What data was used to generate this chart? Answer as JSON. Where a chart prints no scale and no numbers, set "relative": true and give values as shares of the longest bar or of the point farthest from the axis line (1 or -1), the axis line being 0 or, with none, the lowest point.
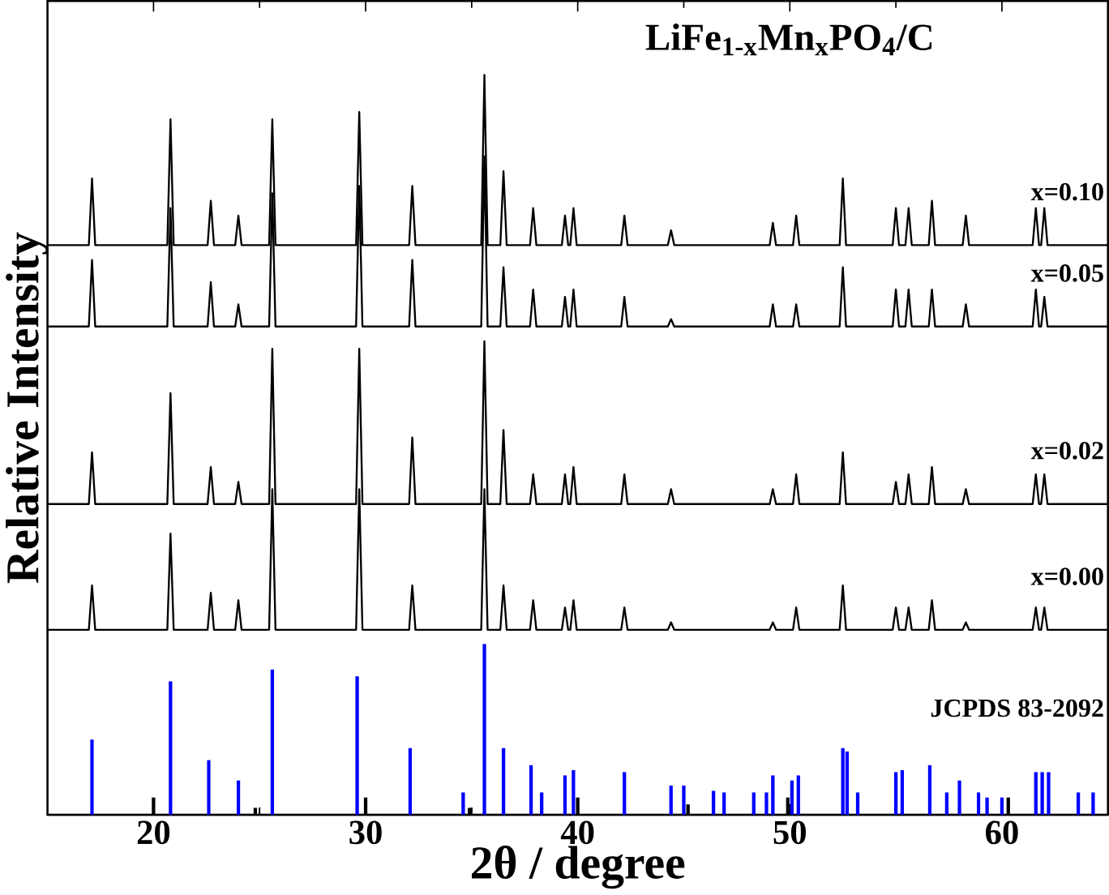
{
  "chart_data": [
    {
      "type": "line",
      "title": "LiFe$_{1-x}$Mn$_{x}$PO$_{4}$/C",
      "xlabel": "2θ / degree",
      "ylabel": "Relative Intensity",
      "relative": true,
      "xlim": [
        15,
        65
      ],
      "xticks": [
        20,
        30,
        40,
        50,
        60
      ],
      "tick_labels": "x",
      "x": [
        15,
        16.95,
        17.1,
        17.25,
        20.65,
        20.8,
        20.95,
        22.55,
        22.7,
        22.85,
        23.85,
        24.0,
        24.15,
        25.45,
        25.6,
        25.75,
        29.55,
        29.7,
        29.85,
        32.05,
        32.2,
        32.35,
        35.45,
        35.6,
        35.75,
        36.35,
        36.5,
        36.65,
        37.75,
        37.9,
        38.05,
        39.25,
        39.4,
        39.55,
        39.65,
        39.8,
        39.95,
        42.05,
        42.2,
        42.35,
        44.25,
        44.4,
        44.55,
        49.05,
        49.2,
        49.35,
        50.15,
        50.3,
        50.45,
        52.35,
        52.5,
        52.65,
        54.85,
        55.0,
        55.15,
        55.45,
        55.6,
        55.75,
        56.55,
        56.7,
        56.85,
        58.15,
        58.3,
        58.45,
        61.45,
        61.6,
        61.75,
        61.85,
        62.0,
        62.15,
        65
      ],
      "series": [
        {
          "name": "x=0.10",
          "color": "#000000",
          "values": [
            0.77,
            0.77,
            0.86,
            0.77,
            0.77,
            0.94,
            0.77,
            0.77,
            0.83,
            0.77,
            0.77,
            0.81,
            0.77,
            0.77,
            0.94,
            0.77,
            0.77,
            0.95,
            0.77,
            0.77,
            0.85,
            0.77,
            0.77,
            1.0,
            0.77,
            0.77,
            0.87,
            0.77,
            0.77,
            0.82,
            0.77,
            0.77,
            0.81,
            0.77,
            0.77,
            0.82,
            0.77,
            0.77,
            0.81,
            0.77,
            0.77,
            0.79,
            0.77,
            0.77,
            0.8,
            0.77,
            0.77,
            0.81,
            0.77,
            0.77,
            0.86,
            0.77,
            0.77,
            0.82,
            0.77,
            0.77,
            0.82,
            0.77,
            0.77,
            0.83,
            0.77,
            0.77,
            0.81,
            0.77,
            0.77,
            0.82,
            0.77,
            0.77,
            0.82,
            0.77,
            0.77
          ]
        },
        {
          "name": "x=0.05",
          "color": "#000000",
          "values": [
            0.66,
            0.66,
            0.75,
            0.66,
            0.66,
            0.82,
            0.66,
            0.66,
            0.72,
            0.66,
            0.66,
            0.69,
            0.66,
            0.66,
            0.84,
            0.66,
            0.66,
            0.85,
            0.66,
            0.66,
            0.75,
            0.66,
            0.66,
            0.89,
            0.66,
            0.66,
            0.74,
            0.66,
            0.66,
            0.71,
            0.66,
            0.66,
            0.7,
            0.66,
            0.66,
            0.71,
            0.66,
            0.66,
            0.7,
            0.66,
            0.66,
            0.67,
            0.66,
            0.66,
            0.69,
            0.66,
            0.66,
            0.69,
            0.66,
            0.66,
            0.74,
            0.66,
            0.66,
            0.71,
            0.66,
            0.66,
            0.71,
            0.66,
            0.66,
            0.71,
            0.66,
            0.66,
            0.69,
            0.66,
            0.66,
            0.71,
            0.66,
            0.66,
            0.7,
            0.66,
            0.66
          ]
        },
        {
          "name": "x=0.02",
          "color": "#000000",
          "values": [
            0.42,
            0.42,
            0.49,
            0.42,
            0.42,
            0.57,
            0.42,
            0.42,
            0.47,
            0.42,
            0.42,
            0.45,
            0.42,
            0.42,
            0.63,
            0.42,
            0.42,
            0.63,
            0.42,
            0.42,
            0.51,
            0.42,
            0.42,
            0.64,
            0.42,
            0.42,
            0.52,
            0.42,
            0.42,
            0.46,
            0.42,
            0.42,
            0.46,
            0.42,
            0.42,
            0.47,
            0.42,
            0.42,
            0.46,
            0.42,
            0.42,
            0.44,
            0.42,
            0.42,
            0.44,
            0.42,
            0.42,
            0.46,
            0.42,
            0.42,
            0.49,
            0.42,
            0.42,
            0.45,
            0.42,
            0.42,
            0.46,
            0.42,
            0.42,
            0.47,
            0.42,
            0.42,
            0.44,
            0.42,
            0.42,
            0.46,
            0.42,
            0.42,
            0.46,
            0.42,
            0.42
          ]
        },
        {
          "name": "x=0.00",
          "color": "#000000",
          "values": [
            0.25,
            0.25,
            0.31,
            0.25,
            0.25,
            0.38,
            0.25,
            0.25,
            0.3,
            0.25,
            0.25,
            0.29,
            0.25,
            0.25,
            0.44,
            0.25,
            0.25,
            0.44,
            0.25,
            0.25,
            0.31,
            0.25,
            0.25,
            0.44,
            0.25,
            0.25,
            0.31,
            0.25,
            0.25,
            0.29,
            0.25,
            0.25,
            0.28,
            0.25,
            0.25,
            0.29,
            0.25,
            0.25,
            0.28,
            0.25,
            0.25,
            0.26,
            0.25,
            0.25,
            0.26,
            0.25,
            0.25,
            0.28,
            0.25,
            0.25,
            0.31,
            0.25,
            0.25,
            0.28,
            0.25,
            0.25,
            0.28,
            0.25,
            0.25,
            0.29,
            0.25,
            0.25,
            0.26,
            0.25,
            0.25,
            0.28,
            0.25,
            0.25,
            0.28,
            0.25,
            0.25
          ]
        }
      ]
    },
    {
      "type": "bar",
      "relative": true,
      "tick_labels": false,
      "xlim": [
        15,
        65
      ],
      "xticks": [
        20,
        30,
        40,
        50,
        60
      ],
      "x": [
        17.1,
        20.0,
        20.8,
        22.6,
        24.0,
        24.8,
        25.6,
        29.6,
        30.0,
        32.1,
        34.6,
        34.9,
        35.6,
        36.5,
        37.8,
        38.3,
        39.4,
        39.8,
        40.0,
        42.2,
        44.4,
        45.0,
        45.2,
        46.4,
        46.9,
        48.3,
        48.9,
        49.2,
        49.9,
        50.1,
        50.4,
        52.5,
        52.7,
        53.2,
        55.0,
        55.3,
        56.6,
        57.4,
        58.0,
        58.9,
        59.3,
        60.0,
        60.3,
        61.6,
        61.9,
        62.2,
        63.6,
        64.3
      ],
      "series": [
        {
          "name": "JCPDS 83-2092",
          "color": "#0000ff",
          "colors": [
            "#0000ff",
            "#000000",
            "#0000ff",
            "#0000ff",
            "#0000ff",
            "#000000",
            "#0000ff",
            "#0000ff",
            "#000000",
            "#0000ff",
            "#0000ff",
            "#000000",
            "#0000ff",
            "#0000ff",
            "#0000ff",
            "#0000ff",
            "#0000ff",
            "#0000ff",
            "#000000",
            "#0000ff",
            "#0000ff",
            "#0000ff",
            "#000000",
            "#0000ff",
            "#0000ff",
            "#0000ff",
            "#0000ff",
            "#0000ff",
            "#000000",
            "#0000ff",
            "#0000ff",
            "#0000ff",
            "#0000ff",
            "#0000ff",
            "#0000ff",
            "#0000ff",
            "#0000ff",
            "#0000ff",
            "#0000ff",
            "#0000ff",
            "#0000ff",
            "#0000ff",
            "#000000",
            "#0000ff",
            "#0000ff",
            "#0000ff",
            "#0000ff",
            "#0000ff"
          ],
          "values": [
            0.44,
            0.1,
            0.78,
            0.32,
            0.2,
            0.04,
            0.85,
            0.81,
            0.1,
            0.39,
            0.13,
            0.04,
            1,
            0.39,
            0.29,
            0.13,
            0.23,
            0.26,
            0.1,
            0.25,
            0.17,
            0.17,
            0.06,
            0.14,
            0.13,
            0.13,
            0.13,
            0.23,
            0.1,
            0.2,
            0.23,
            0.39,
            0.37,
            0.13,
            0.25,
            0.26,
            0.29,
            0.13,
            0.2,
            0.13,
            0.1,
            0.1,
            0.1,
            0.25,
            0.25,
            0.25,
            0.13,
            0.13
          ]
        }
      ]
    }
  ]
}
